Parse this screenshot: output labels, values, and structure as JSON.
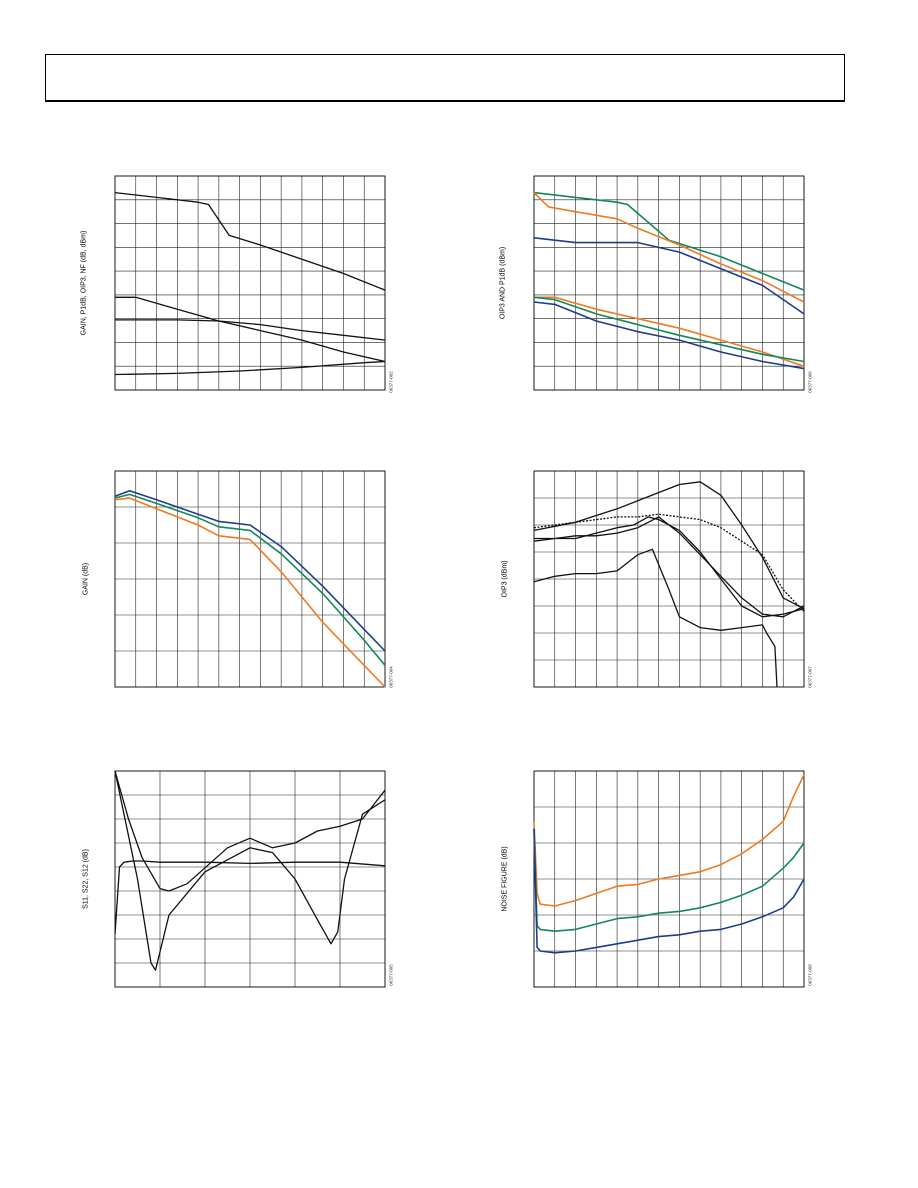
{
  "colors": {
    "black": "#111111",
    "orange": "#f07a22",
    "green": "#14875a",
    "blue": "#1d3d8c"
  },
  "chart_data": [
    {
      "type": "line",
      "ylabel": "GAIN, P1dB, OIP3, NF (dB, dBm)",
      "figure_id": "06377-002",
      "xlim": [
        0,
        13
      ],
      "ylim": [
        0,
        9
      ],
      "grid": true,
      "series": [
        {
          "color": "black",
          "x": [
            0,
            2,
            4,
            4.5,
            5.5,
            7,
            9,
            11,
            13
          ],
          "y": [
            8.3,
            8.1,
            7.9,
            7.8,
            6.5,
            6.1,
            5.5,
            4.9,
            4.2
          ]
        },
        {
          "color": "black",
          "x": [
            0,
            1,
            3,
            5,
            7,
            9,
            11,
            13
          ],
          "y": [
            3.9,
            3.9,
            3.4,
            2.9,
            2.5,
            2.1,
            1.6,
            1.2
          ]
        },
        {
          "color": "black",
          "x": [
            0,
            3,
            5,
            7,
            9,
            11,
            13
          ],
          "y": [
            2.95,
            2.95,
            2.9,
            2.75,
            2.5,
            2.3,
            2.1
          ]
        },
        {
          "color": "black",
          "x": [
            0,
            3,
            6,
            9,
            12,
            13
          ],
          "y": [
            0.65,
            0.7,
            0.8,
            0.95,
            1.15,
            1.2
          ]
        }
      ]
    },
    {
      "type": "line",
      "ylabel": "OIP3 AND P1dB (dBm)",
      "figure_id": "06377-006",
      "xlim": [
        0,
        13
      ],
      "ylim": [
        0,
        9
      ],
      "grid": true,
      "series": [
        {
          "color": "green",
          "x": [
            0,
            2,
            4,
            4.5,
            6.5,
            9,
            11,
            13
          ],
          "y": [
            8.3,
            8.1,
            7.9,
            7.8,
            6.3,
            5.6,
            4.9,
            4.2
          ]
        },
        {
          "color": "orange",
          "x": [
            0,
            0.7,
            2,
            4,
            5,
            7,
            9,
            11,
            13
          ],
          "y": [
            8.3,
            7.7,
            7.5,
            7.2,
            6.8,
            6.1,
            5.3,
            4.6,
            3.7
          ]
        },
        {
          "color": "blue",
          "x": [
            0,
            2,
            4,
            5,
            7,
            9,
            11,
            13
          ],
          "y": [
            6.4,
            6.2,
            6.2,
            6.2,
            5.8,
            5.1,
            4.4,
            3.2
          ]
        },
        {
          "color": "orange",
          "x": [
            0,
            1,
            3,
            5,
            7,
            9,
            11,
            13
          ],
          "y": [
            3.9,
            3.9,
            3.4,
            3.0,
            2.6,
            2.1,
            1.6,
            1.0
          ]
        },
        {
          "color": "green",
          "x": [
            0,
            1,
            3,
            5,
            7,
            9,
            11,
            13
          ],
          "y": [
            3.9,
            3.8,
            3.2,
            2.75,
            2.3,
            1.9,
            1.5,
            1.2
          ]
        },
        {
          "color": "blue",
          "x": [
            0,
            1,
            3,
            5,
            7,
            9,
            11,
            13
          ],
          "y": [
            3.7,
            3.6,
            2.9,
            2.45,
            2.1,
            1.6,
            1.2,
            0.9
          ]
        }
      ]
    },
    {
      "type": "line",
      "ylabel": "GAIN (dB)",
      "figure_id": "06377-004",
      "xlim": [
        0,
        13
      ],
      "ylim": [
        0,
        6
      ],
      "grid": true,
      "series": [
        {
          "color": "blue",
          "x": [
            0,
            0.7,
            2,
            4,
            5,
            6.5,
            8,
            10,
            12,
            13
          ],
          "y": [
            5.3,
            5.45,
            5.2,
            4.8,
            4.6,
            4.5,
            3.9,
            2.8,
            1.6,
            1.0
          ]
        },
        {
          "color": "green",
          "x": [
            0,
            0.7,
            2,
            4,
            5,
            6.5,
            8,
            10,
            12,
            13
          ],
          "y": [
            5.25,
            5.35,
            5.1,
            4.7,
            4.45,
            4.35,
            3.7,
            2.6,
            1.3,
            0.6
          ]
        },
        {
          "color": "orange",
          "x": [
            0,
            0.7,
            2,
            4,
            5,
            6.5,
            8,
            10,
            12,
            13
          ],
          "y": [
            5.2,
            5.25,
            4.95,
            4.5,
            4.2,
            4.1,
            3.2,
            1.8,
            0.6,
            0.0
          ]
        }
      ]
    },
    {
      "type": "line",
      "ylabel": "OIP3 (dBm)",
      "figure_id": "06377-007",
      "xlim": [
        0,
        13
      ],
      "ylim": [
        0,
        8
      ],
      "grid": true,
      "series": [
        {
          "color": "black",
          "x": [
            0,
            2,
            4,
            6,
            7,
            8,
            9,
            10,
            11,
            12,
            13
          ],
          "y": [
            5.8,
            6.1,
            6.6,
            7.2,
            7.5,
            7.6,
            7.1,
            6.0,
            4.8,
            3.3,
            2.9
          ]
        },
        {
          "color": "black",
          "dashed": true,
          "x": [
            0,
            2,
            4,
            5,
            6,
            7,
            8,
            9,
            10,
            11,
            12,
            13
          ],
          "y": [
            5.9,
            6.1,
            6.3,
            6.3,
            6.4,
            6.3,
            6.2,
            5.9,
            5.4,
            4.9,
            3.6,
            2.8
          ]
        },
        {
          "color": "black",
          "x": [
            0,
            1,
            2,
            3,
            4,
            5,
            6,
            7,
            8,
            9,
            10,
            11,
            12,
            13
          ],
          "y": [
            5.5,
            5.5,
            5.6,
            5.6,
            5.7,
            5.9,
            6.3,
            5.7,
            4.9,
            4.1,
            3.3,
            2.7,
            2.6,
            3.0
          ]
        },
        {
          "color": "black",
          "x": [
            0,
            1,
            2,
            3,
            4,
            4.8,
            5.5,
            6,
            7,
            8,
            9,
            10,
            11,
            12,
            13
          ],
          "y": [
            5.4,
            5.5,
            5.5,
            5.7,
            5.9,
            6.0,
            6.3,
            6.2,
            5.8,
            5.0,
            4.0,
            3.0,
            2.6,
            2.7,
            2.9
          ]
        },
        {
          "color": "black",
          "x": [
            0,
            1,
            2,
            3,
            4,
            5,
            5.7,
            6.5,
            7,
            8,
            9,
            10,
            11,
            11.2,
            11.6,
            11.7
          ],
          "y": [
            3.9,
            4.1,
            4.2,
            4.2,
            4.3,
            4.9,
            5.1,
            3.6,
            2.6,
            2.2,
            2.1,
            2.2,
            2.3,
            2.0,
            1.5,
            0.0
          ]
        }
      ]
    },
    {
      "type": "line",
      "ylabel": "S11, S22, S12 (dB)",
      "figure_id": "06377-005",
      "xlim": [
        0,
        6
      ],
      "ylim": [
        0,
        9
      ],
      "grid": true,
      "series": [
        {
          "color": "black",
          "x": [
            0,
            0.1,
            0.2,
            0.4,
            0.6,
            1,
            2,
            3,
            4,
            5,
            6
          ],
          "y": [
            2.2,
            5.0,
            5.2,
            5.25,
            5.25,
            5.2,
            5.2,
            5.15,
            5.2,
            5.2,
            5.05
          ]
        },
        {
          "color": "black",
          "x": [
            0,
            0.2,
            0.5,
            0.8,
            0.9,
            1.2,
            2,
            3,
            3.5,
            4,
            4.5,
            4.8,
            4.95,
            5.1,
            5.5,
            6
          ],
          "y": [
            9.0,
            7.2,
            4.5,
            1.0,
            0.7,
            3.0,
            4.8,
            5.8,
            5.6,
            4.5,
            2.8,
            1.8,
            2.3,
            4.5,
            7.2,
            7.8
          ]
        },
        {
          "color": "black",
          "x": [
            0,
            0.3,
            0.6,
            1.0,
            1.2,
            1.6,
            2.5,
            3.0,
            3.5,
            4,
            4.5,
            5,
            5.5,
            6
          ],
          "y": [
            9.0,
            7.0,
            5.4,
            4.1,
            4.0,
            4.3,
            5.8,
            6.2,
            5.8,
            6.0,
            6.5,
            6.7,
            7.0,
            8.2
          ]
        }
      ]
    },
    {
      "type": "line",
      "ylabel": "NOISE FIGURE (dB)",
      "figure_id": "06377-008",
      "xlim": [
        0,
        13
      ],
      "ylim": [
        0,
        6
      ],
      "grid": true,
      "series": [
        {
          "color": "orange",
          "x": [
            0,
            0.15,
            0.3,
            1,
            2,
            3,
            4,
            5,
            6,
            7,
            8,
            9,
            10,
            11,
            12,
            12.5,
            13
          ],
          "y": [
            4.6,
            2.6,
            2.3,
            2.25,
            2.4,
            2.6,
            2.8,
            2.85,
            3.0,
            3.1,
            3.2,
            3.4,
            3.7,
            4.1,
            4.6,
            5.3,
            5.9
          ]
        },
        {
          "color": "green",
          "x": [
            0,
            0.15,
            0.3,
            1,
            2,
            3,
            4,
            5,
            6,
            7,
            8,
            9,
            10,
            11,
            12,
            12.5,
            13
          ],
          "y": [
            4.4,
            1.7,
            1.6,
            1.55,
            1.6,
            1.75,
            1.9,
            1.95,
            2.05,
            2.1,
            2.2,
            2.35,
            2.55,
            2.8,
            3.3,
            3.6,
            4.0
          ]
        },
        {
          "color": "blue",
          "x": [
            0,
            0.15,
            0.3,
            1,
            2,
            3,
            4,
            5,
            6,
            7,
            8,
            9,
            10,
            11,
            12,
            12.5,
            13
          ],
          "y": [
            4.4,
            1.1,
            1.0,
            0.95,
            1.0,
            1.1,
            1.2,
            1.3,
            1.4,
            1.45,
            1.55,
            1.6,
            1.75,
            1.95,
            2.2,
            2.5,
            3.0
          ]
        }
      ]
    }
  ]
}
